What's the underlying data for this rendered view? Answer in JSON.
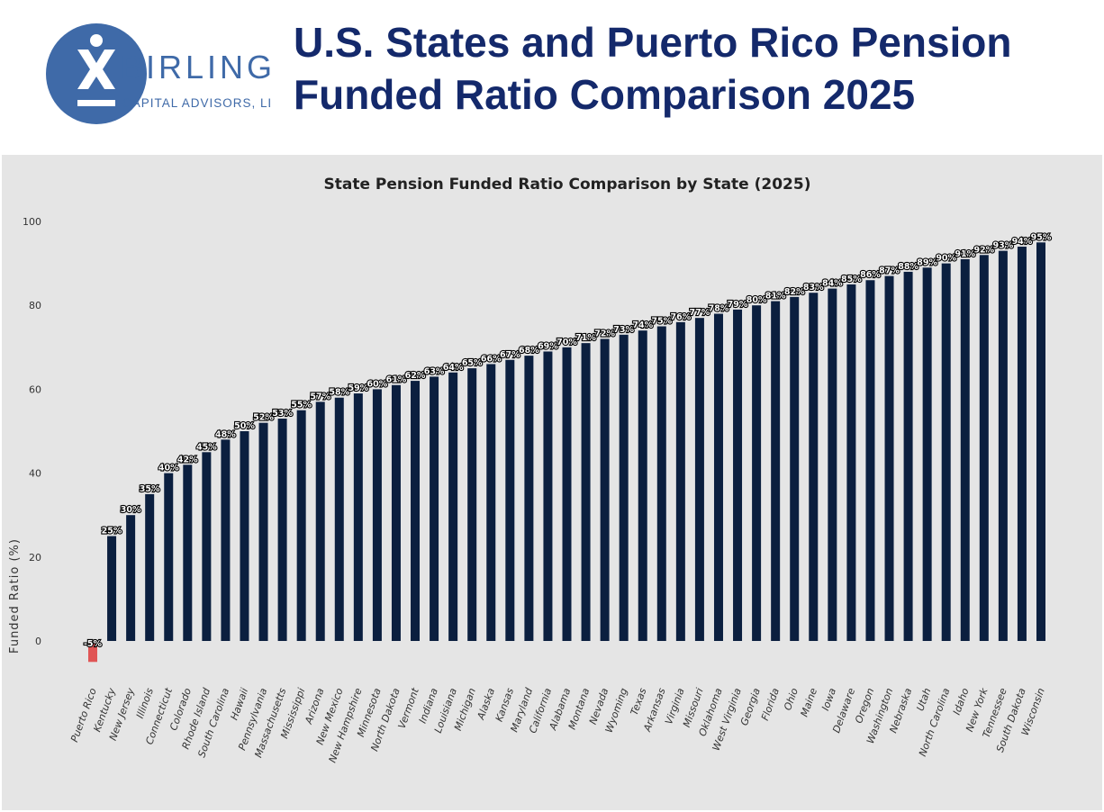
{
  "header": {
    "title_line1": "U.S. States and Puerto Rico Pension",
    "title_line2": "Funded Ratio Comparison 2025",
    "logo_name": "BIRLING",
    "logo_sub": "CAPITAL ADVISORS, LLC"
  },
  "colors": {
    "brand": "#3f6aa8",
    "title": "#14296b",
    "bar": "#0b1f3f",
    "negative_bar": "#e05555",
    "background": "#e5e5e5"
  },
  "chart_data": {
    "type": "bar",
    "title": "State Pension Funded Ratio Comparison by State (2025)",
    "xlabel": "",
    "ylabel": "Funded Ratio (%)",
    "ylim": [
      -5,
      100
    ],
    "yticks": [
      0,
      20,
      40,
      60,
      80,
      100
    ],
    "grid": false,
    "categories": [
      "Puerto Rico",
      "Kentucky",
      "New Jersey",
      "Illinois",
      "Connecticut",
      "Colorado",
      "Rhode Island",
      "South Carolina",
      "Hawaii",
      "Pennsylvania",
      "Massachusetts",
      "Mississippi",
      "Arizona",
      "New Mexico",
      "New Hampshire",
      "Minnesota",
      "North Dakota",
      "Vermont",
      "Indiana",
      "Louisiana",
      "Michigan",
      "Alaska",
      "Kansas",
      "Maryland",
      "California",
      "Alabama",
      "Montana",
      "Nevada",
      "Wyoming",
      "Texas",
      "Arkansas",
      "Virginia",
      "Missouri",
      "Oklahoma",
      "West Virginia",
      "Georgia",
      "Florida",
      "Ohio",
      "Maine",
      "Iowa",
      "Delaware",
      "Oregon",
      "Washington",
      "Nebraska",
      "Utah",
      "North Carolina",
      "Idaho",
      "New York",
      "Tennessee",
      "South Dakota",
      "Wisconsin"
    ],
    "values": [
      -5,
      25,
      30,
      35,
      40,
      42,
      45,
      48,
      50,
      52,
      53,
      55,
      57,
      58,
      59,
      60,
      61,
      62,
      63,
      64,
      65,
      66,
      67,
      68,
      69,
      70,
      71,
      72,
      73,
      74,
      75,
      76,
      77,
      78,
      79,
      80,
      81,
      82,
      83,
      84,
      85,
      86,
      87,
      88,
      89,
      90,
      91,
      92,
      93,
      94,
      95
    ],
    "data_labels": [
      "-5%",
      "25%",
      "30%",
      "35%",
      "40%",
      "42%",
      "45%",
      "48%",
      "50%",
      "52%",
      "53%",
      "55%",
      "57%",
      "58%",
      "59%",
      "60%",
      "61%",
      "62%",
      "63%",
      "64%",
      "65%",
      "66%",
      "67%",
      "68%",
      "69%",
      "70%",
      "71%",
      "72%",
      "73%",
      "74%",
      "75%",
      "76%",
      "77%",
      "78%",
      "79%",
      "80%",
      "81%",
      "82%",
      "83%",
      "84%",
      "85%",
      "86%",
      "87%",
      "88%",
      "89%",
      "90%",
      "91%",
      "92%",
      "93%",
      "94%",
      "95%"
    ]
  }
}
